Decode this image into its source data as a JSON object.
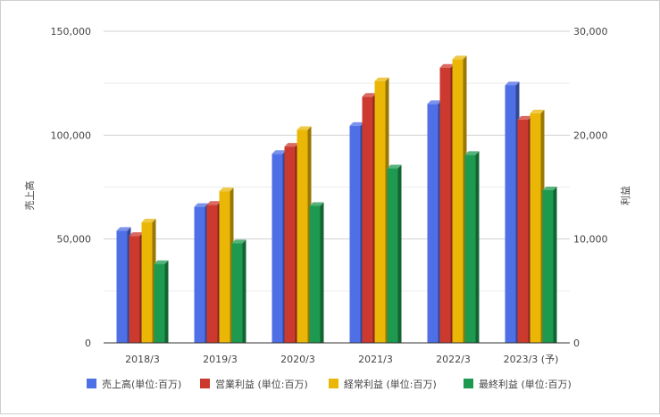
{
  "chart_data": {
    "type": "bar",
    "categories": [
      "2018/3",
      "2019/3",
      "2020/3",
      "2021/3",
      "2022/3",
      "2023/3 (予)"
    ],
    "left_axis": {
      "label": "売上高",
      "ylim": [
        0,
        150000
      ],
      "ticks": [
        "0",
        "50,000",
        "100,000",
        "150,000"
      ]
    },
    "right_axis": {
      "label": "利益",
      "ylim": [
        0,
        30000
      ],
      "ticks": [
        "0",
        "10,000",
        "20,000",
        "30,000"
      ]
    },
    "series": [
      {
        "name": "売上高(単位:百万)",
        "axis": "left",
        "color": "#4f6fe6",
        "values": [
          54000,
          65500,
          91000,
          104500,
          115000,
          124000
        ]
      },
      {
        "name": "営業利益 (単位:百万)",
        "axis": "right",
        "color": "#cc3a2f",
        "values": [
          10300,
          13300,
          18900,
          23700,
          26500,
          21500
        ]
      },
      {
        "name": "経常利益 (単位:百万)",
        "axis": "right",
        "color": "#eab707",
        "values": [
          11600,
          14600,
          20500,
          25200,
          27300,
          22100
        ]
      },
      {
        "name": "最終利益 (単位:百万)",
        "axis": "right",
        "color": "#1d9a4f",
        "values": [
          7600,
          9600,
          13200,
          16800,
          18100,
          14700
        ]
      }
    ],
    "grid": true,
    "legend_position": "bottom"
  }
}
